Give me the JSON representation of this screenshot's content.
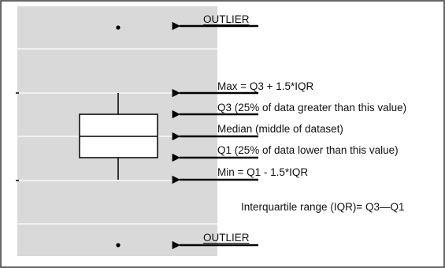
{
  "labels": {
    "outlier_top": "OUTLIER",
    "max": "Max = Q3 + 1.5*IQR",
    "q3": "Q3 (25% of data greater than this value)",
    "median": "Median (middle of dataset)",
    "q1": "Q1 (25% of data lower than this value)",
    "min": "Min = Q1 - 1.5*IQR",
    "iqr": "Interquartile range (IQR)= Q3—Q1",
    "outlier_bottom": "OUTLIER"
  },
  "colors": {
    "plot_background": "#d9d9d9",
    "gridline": "#ffffff",
    "box_fill": "#ffffff",
    "stroke": "#000000",
    "frame": "#333333"
  }
}
